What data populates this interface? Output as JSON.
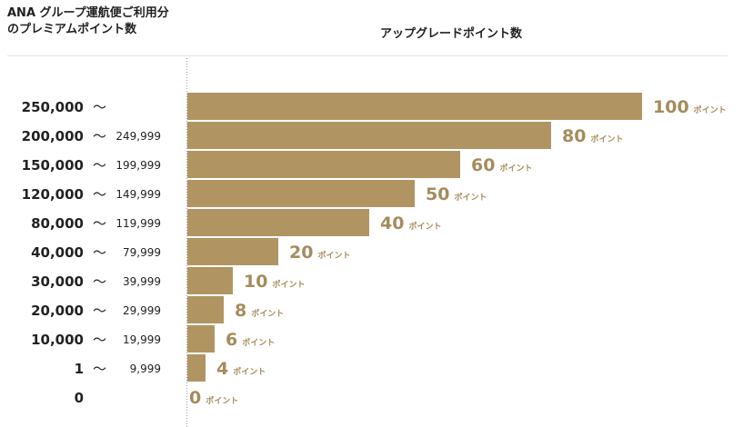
{
  "header": {
    "left_line1": "ANA グループ運航便ご利用分",
    "left_line2": "のプレミアムポイント数",
    "right": "アップグレードポイント数"
  },
  "colors": {
    "bar": "#b09563",
    "value_text": "#a68c5c",
    "label_text": "#222222",
    "axis": "#9a9a9a"
  },
  "chart_data": {
    "type": "bar",
    "orientation": "horizontal",
    "title": "",
    "xlabel": "アップグレードポイント数",
    "ylabel": "ANA グループ運航便ご利用分のプレミアムポイント数",
    "xlim": [
      0,
      100
    ],
    "grid": false,
    "unit": "ポイント",
    "categories": [
      {
        "from": "250,000",
        "sep": "～",
        "to": ""
      },
      {
        "from": "200,000",
        "sep": "～",
        "to": "249,999"
      },
      {
        "from": "150,000",
        "sep": "～",
        "to": "199,999"
      },
      {
        "from": "120,000",
        "sep": "～",
        "to": "149,999"
      },
      {
        "from": "80,000",
        "sep": "～",
        "to": "119,999"
      },
      {
        "from": "40,000",
        "sep": "～",
        "to": "79,999"
      },
      {
        "from": "30,000",
        "sep": "～",
        "to": "39,999"
      },
      {
        "from": "20,000",
        "sep": "～",
        "to": "29,999"
      },
      {
        "from": "10,000",
        "sep": "～",
        "to": "19,999"
      },
      {
        "from": "1",
        "sep": "～",
        "to": "9,999"
      },
      {
        "from": "0",
        "sep": "",
        "to": ""
      }
    ],
    "values": [
      100,
      80,
      60,
      50,
      40,
      20,
      10,
      8,
      6,
      4,
      0
    ]
  }
}
